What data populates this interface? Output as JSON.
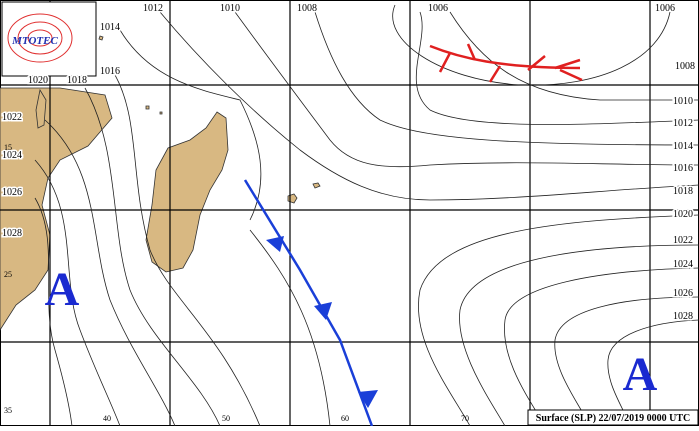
{
  "logo": "MTOTEC",
  "pressure_labels": [
    1012,
    1010,
    1008,
    1006,
    1006,
    1014,
    1016,
    1020,
    1018,
    1022,
    1024,
    1026,
    1028,
    1008,
    1010,
    1012,
    1014,
    1016,
    1018,
    1020,
    1022,
    1024,
    1026,
    1028
  ],
  "latitude_labels": [
    15,
    25,
    35
  ],
  "longitude_labels": [
    40,
    50,
    60,
    70
  ],
  "highs": [
    "A",
    "A"
  ],
  "caption": "Surface (SLP) 22/07/2019 0000 UTC"
}
